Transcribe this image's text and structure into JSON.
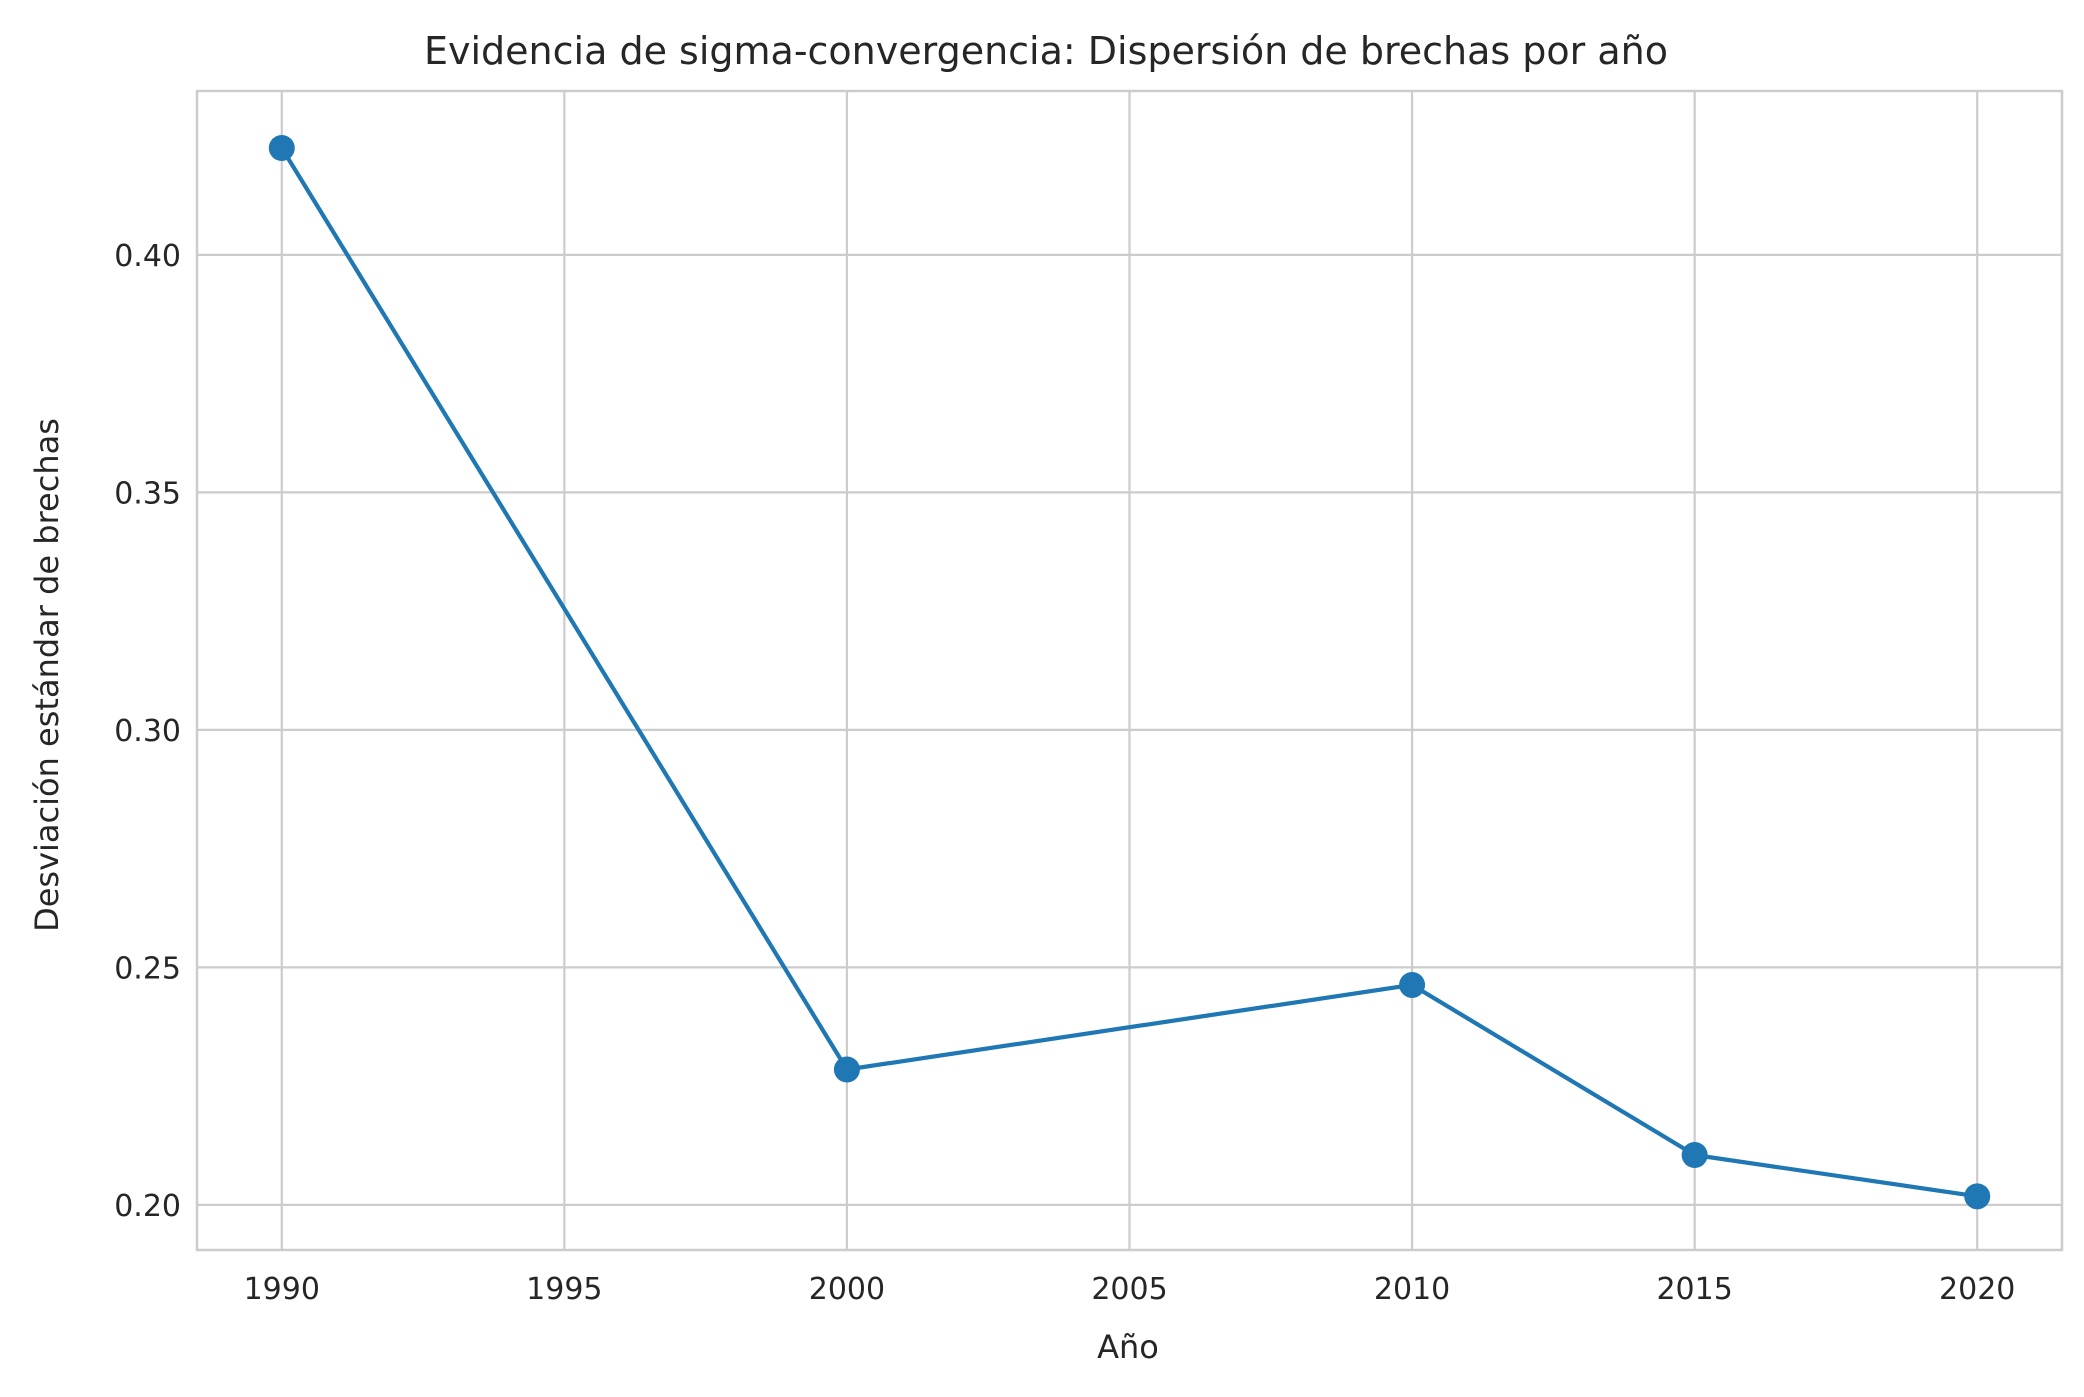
{
  "chart_data": {
    "type": "line",
    "title": "Evidencia de sigma-convergencia: Dispersión de brechas por año",
    "xlabel": "Año",
    "ylabel": "Desviación estándar de brechas",
    "x": [
      1990,
      2000,
      2010,
      2015,
      2020
    ],
    "series": [
      {
        "values": [
          0.4225,
          0.2285,
          0.2463,
          0.2105,
          0.2018
        ],
        "color": "#1f77b4",
        "marker": "circle"
      }
    ],
    "xlim": [
      1988.5,
      2021.5
    ],
    "ylim": [
      0.1905,
      0.4345
    ],
    "xticks": [
      1990,
      1995,
      2000,
      2005,
      2010,
      2015,
      2020
    ],
    "yticks": [
      0.2,
      0.25,
      0.3,
      0.35,
      0.4
    ],
    "ytick_labels": [
      "0.20",
      "0.25",
      "0.30",
      "0.35",
      "0.40"
    ],
    "grid": true,
    "legend": "none"
  }
}
